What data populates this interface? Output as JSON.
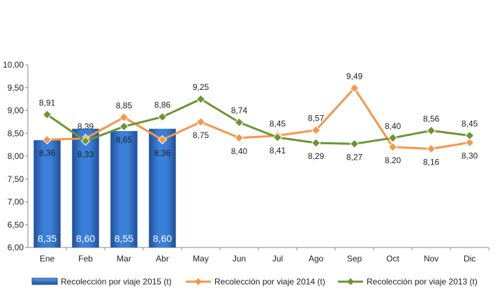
{
  "chart_data": {
    "type": "bar",
    "categories": [
      "Ene",
      "Feb",
      "Mar",
      "Abr",
      "May",
      "Jun",
      "Jul",
      "Ago",
      "Sep",
      "Oct",
      "Nov",
      "Dic"
    ],
    "ylim": [
      6.0,
      10.0
    ],
    "yticks": [
      "6,00",
      "6,50",
      "7,00",
      "7,50",
      "8,00",
      "8,50",
      "9,00",
      "9,50",
      "10,00"
    ],
    "legend_position": "bottom",
    "grid": false,
    "series": [
      {
        "name": "Recolección por viaje 2015 (t)",
        "kind": "bar",
        "color": "#2e6fc7",
        "values": [
          8.35,
          8.6,
          8.55,
          8.6,
          null,
          null,
          null,
          null,
          null,
          null,
          null,
          null
        ],
        "labels": [
          "8,35",
          "8,60",
          "8,55",
          "8,60",
          "",
          "",
          "",
          "",
          "",
          "",
          "",
          ""
        ]
      },
      {
        "name": "Recolección por viaje 2014 (t)",
        "kind": "line",
        "color": "#f79646",
        "values": [
          8.36,
          8.39,
          8.85,
          8.36,
          8.75,
          8.4,
          8.45,
          8.57,
          9.49,
          8.2,
          8.16,
          8.3
        ],
        "labels": [
          "8,36",
          "8,39",
          "8,85",
          "8,36",
          "8,75",
          "8,40",
          "8,45",
          "8,57",
          "9,49",
          "8,20",
          "8,16",
          "8,30"
        ]
      },
      {
        "name": "Recolección por viaje 2013 (t)",
        "kind": "line",
        "color": "#6e9433",
        "values": [
          8.91,
          8.33,
          8.65,
          8.86,
          9.25,
          8.74,
          8.41,
          8.29,
          8.27,
          8.4,
          8.56,
          8.45
        ],
        "labels": [
          "8,91",
          "8,33",
          "8,65",
          "8,86",
          "9,25",
          "8,74",
          "8,41",
          "8,29",
          "8,27",
          "8,40",
          "8,56",
          "8,45"
        ]
      }
    ]
  }
}
